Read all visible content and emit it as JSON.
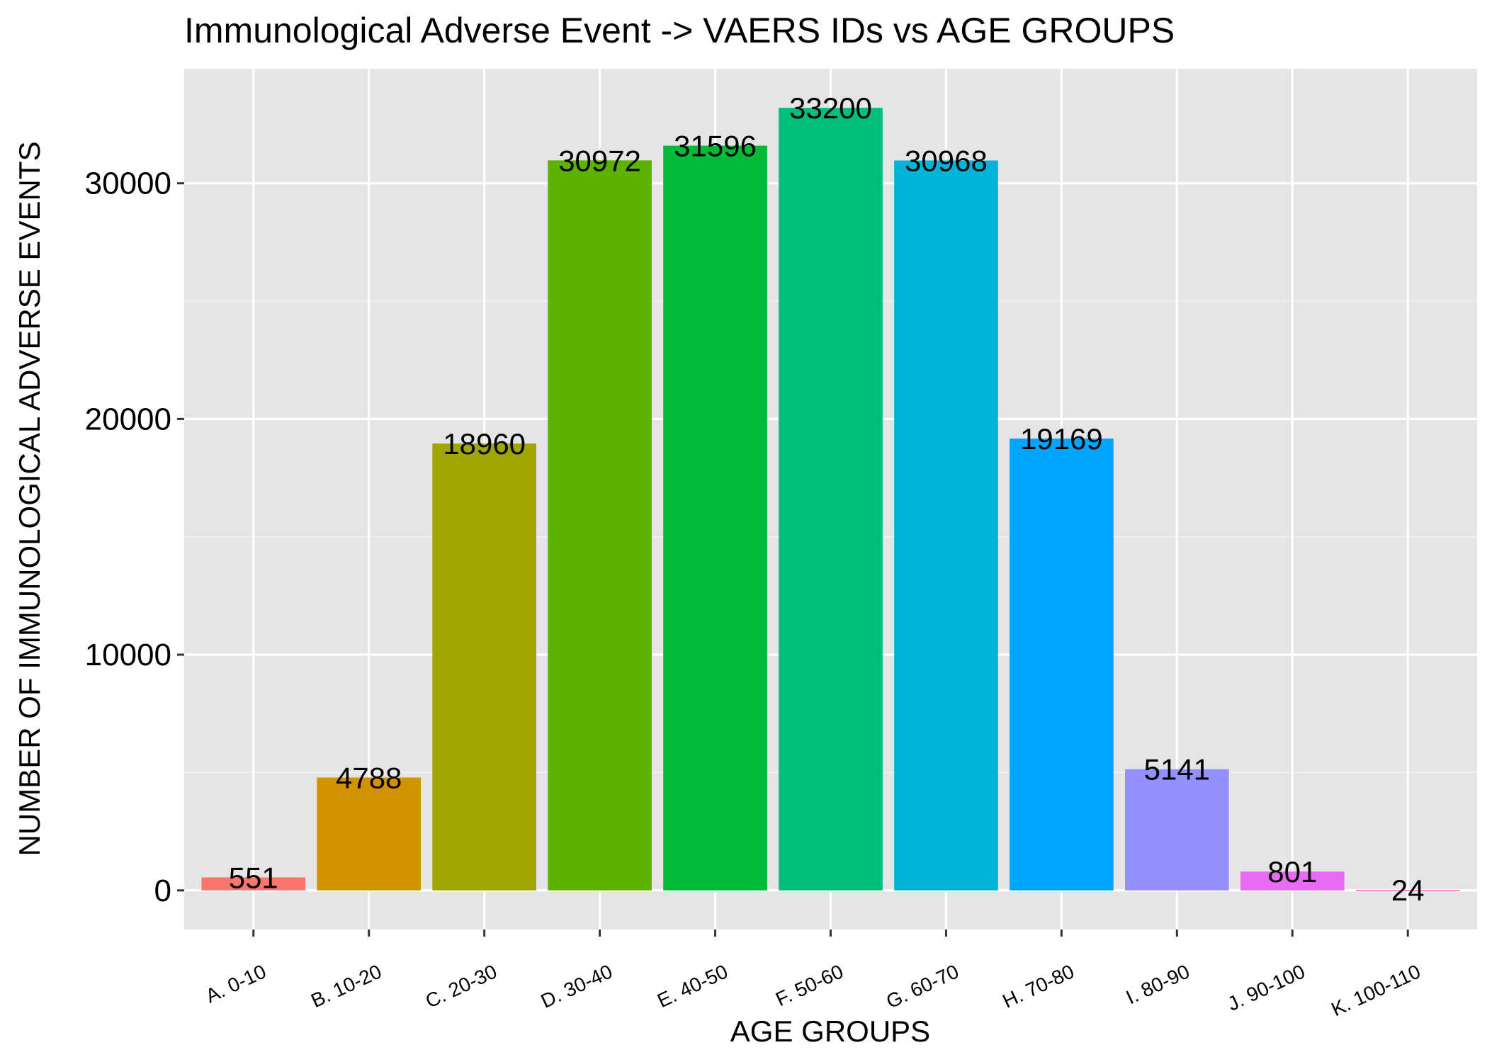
{
  "chart_data": {
    "type": "bar",
    "title": "Immunological Adverse Event -> VAERS IDs vs AGE GROUPS",
    "xlabel": "AGE GROUPS",
    "ylabel": "NUMBER OF IMMUNOLOGICAL ADVERSE EVENTS",
    "categories": [
      "A. 0-10",
      "B. 10-20",
      "C. 20-30",
      "D. 30-40",
      "E. 40-50",
      "F. 50-60",
      "G. 60-70",
      "H. 70-80",
      "I. 80-90",
      "J. 90-100",
      "K. 100-110"
    ],
    "values": [
      551,
      4788,
      18960,
      30972,
      31596,
      33200,
      30968,
      19169,
      5141,
      801,
      24
    ],
    "colors": [
      "#F8766D",
      "#D39200",
      "#A3A500",
      "#5BB300",
      "#00BA38",
      "#00BF7D",
      "#00B4D8",
      "#00A5FF",
      "#9590FF",
      "#E76BF3",
      "#FF62BC"
    ],
    "yticks": [
      0,
      10000,
      20000,
      30000
    ],
    "ylim": [
      -1660,
      34860
    ],
    "grid": true,
    "legend": "none",
    "background": "#E5E5E5"
  }
}
